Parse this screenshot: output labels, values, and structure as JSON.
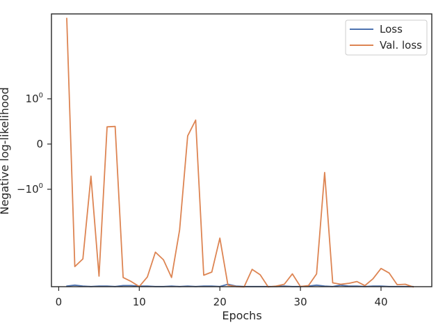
{
  "chart_data": {
    "type": "line",
    "title": "",
    "xlabel": "Epochs",
    "ylabel": "Negative log-likelihood",
    "xlim": [
      -0.9,
      46.3
    ],
    "x_ticks": [
      {
        "value": 0,
        "label": "0"
      },
      {
        "value": 10,
        "label": "10"
      },
      {
        "value": 20,
        "label": "20"
      },
      {
        "value": 30,
        "label": "30"
      },
      {
        "value": 40,
        "label": "40"
      }
    ],
    "y_scale": "symlog",
    "y_ticks": [
      {
        "value": 1,
        "label": "10",
        "exp": "0"
      },
      {
        "value": 0,
        "label": "0",
        "exp": ""
      },
      {
        "value": -1,
        "label": "−10",
        "exp": "0"
      }
    ],
    "legend_position": "top-right",
    "grid": false,
    "series": [
      {
        "name": "Loss",
        "color": "#4c72b0",
        "x": [
          1,
          2,
          3,
          4,
          5,
          6,
          7,
          8,
          9,
          10,
          11,
          12,
          13,
          14,
          15,
          16,
          17,
          18,
          19,
          20,
          21,
          22,
          23,
          24,
          25,
          26,
          27,
          28,
          29,
          30,
          31,
          32,
          33,
          34,
          35,
          36,
          37,
          38,
          39,
          40,
          41,
          42,
          43,
          44
        ],
        "y": [
          -3.14,
          -3.12,
          -3.14,
          -3.15,
          -3.14,
          -3.14,
          -3.15,
          -3.13,
          -3.13,
          -3.14,
          -3.14,
          -3.15,
          -3.15,
          -3.14,
          -3.15,
          -3.14,
          -3.15,
          -3.14,
          -3.14,
          -3.15,
          -3.1,
          -3.14,
          -3.15,
          -3.15,
          -3.15,
          -3.15,
          -3.15,
          -3.14,
          -3.15,
          -3.15,
          -3.14,
          -3.12,
          -3.14,
          -3.15,
          -3.12,
          -3.14,
          -3.14,
          -3.15,
          -3.14,
          -3.14,
          -3.15,
          -3.15,
          -3.15,
          -3.15
        ]
      },
      {
        "name": "Val. loss",
        "color": "#dd8452",
        "x": [
          1,
          2,
          3,
          4,
          5,
          6,
          7,
          8,
          9,
          10,
          11,
          12,
          13,
          14,
          15,
          16,
          17,
          18,
          19,
          20,
          21,
          22,
          23,
          24,
          25,
          26,
          27,
          28,
          29,
          30,
          31,
          32,
          33,
          34,
          35,
          36,
          37,
          38,
          39,
          40,
          41,
          42,
          43,
          44
        ],
        "y": [
          2.78,
          -2.71,
          -2.54,
          -0.71,
          -2.92,
          0.38,
          0.39,
          -2.95,
          -3.04,
          -3.15,
          -2.94,
          -2.39,
          -2.56,
          -2.95,
          -1.9,
          0.18,
          0.53,
          -2.9,
          -2.83,
          -2.08,
          -3.12,
          -3.15,
          -3.16,
          -2.77,
          -2.89,
          -3.16,
          -3.14,
          -3.1,
          -2.87,
          -3.15,
          -3.13,
          -2.87,
          -0.63,
          -3.07,
          -3.1,
          -3.08,
          -3.04,
          -3.13,
          -2.98,
          -2.75,
          -2.85,
          -3.11,
          -3.1,
          -3.16
        ]
      }
    ]
  }
}
